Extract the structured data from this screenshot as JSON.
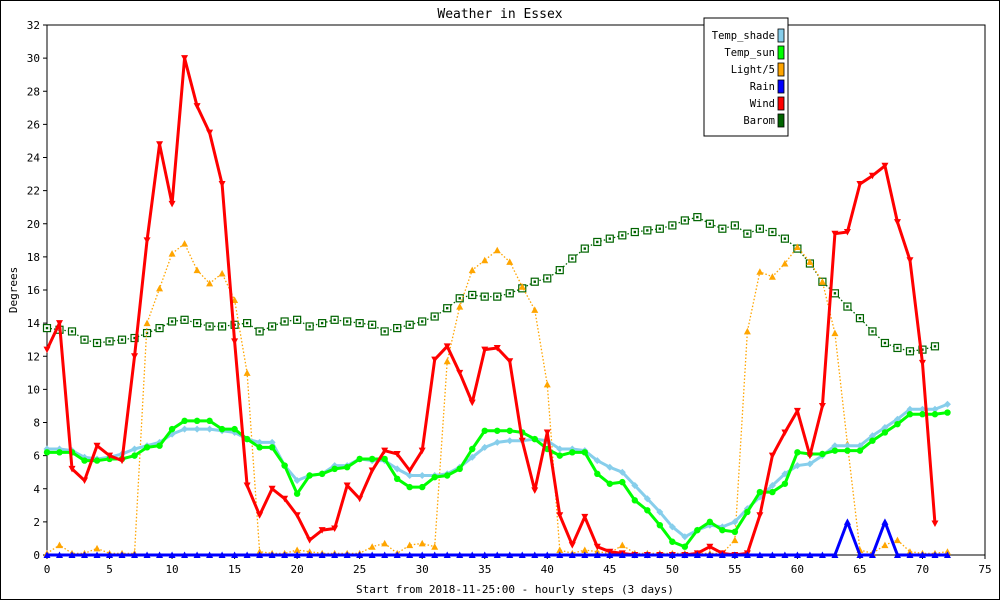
{
  "chart_data": {
    "type": "line",
    "title": "Weather in Essex",
    "xlabel": "Start from 2018-11-25:00 - hourly steps (3 days)",
    "ylabel": "Degrees",
    "xlim": [
      0,
      75
    ],
    "ylim": [
      0,
      32
    ],
    "x_ticks": [
      0,
      5,
      10,
      15,
      20,
      25,
      30,
      35,
      40,
      45,
      50,
      55,
      60,
      65,
      70,
      75
    ],
    "y_ticks": [
      0,
      2,
      4,
      6,
      8,
      10,
      12,
      14,
      16,
      18,
      20,
      22,
      24,
      26,
      28,
      30,
      32
    ],
    "grid": false,
    "legend_position": "top-right",
    "series": [
      {
        "name": "Temp_shade",
        "color": "#87ceeb",
        "marker": "diamond",
        "style": "solid",
        "values": [
          6.4,
          6.4,
          6.3,
          5.9,
          5.8,
          5.9,
          6.1,
          6.4,
          6.6,
          6.8,
          7.3,
          7.6,
          7.6,
          7.6,
          7.5,
          7.4,
          7.0,
          6.8,
          6.8,
          5.4,
          4.5,
          4.8,
          4.9,
          5.4,
          5.4,
          5.8,
          5.7,
          5.7,
          5.2,
          4.8,
          4.8,
          4.8,
          4.9,
          5.3,
          5.9,
          6.5,
          6.8,
          6.9,
          6.9,
          7.0,
          6.9,
          6.4,
          6.4,
          6.3,
          5.7,
          5.3,
          5.0,
          4.2,
          3.4,
          2.6,
          1.7,
          1.1,
          1.5,
          1.8,
          1.7,
          2.0,
          2.8,
          3.5,
          4.2,
          4.9,
          5.4,
          5.5,
          6.0,
          6.6,
          6.6,
          6.6,
          7.2,
          7.7,
          8.2,
          8.8,
          8.8,
          8.8,
          9.1
        ]
      },
      {
        "name": "Temp_sun",
        "color": "#00ff00",
        "marker": "circle",
        "style": "solid",
        "values": [
          6.2,
          6.2,
          6.2,
          5.7,
          5.7,
          5.8,
          5.8,
          6.0,
          6.5,
          6.6,
          7.6,
          8.1,
          8.1,
          8.1,
          7.6,
          7.6,
          7.0,
          6.5,
          6.5,
          5.4,
          3.7,
          4.8,
          4.9,
          5.2,
          5.3,
          5.8,
          5.8,
          5.8,
          4.6,
          4.1,
          4.1,
          4.7,
          4.8,
          5.2,
          6.4,
          7.5,
          7.5,
          7.5,
          7.4,
          7.0,
          6.4,
          6.0,
          6.2,
          6.2,
          4.9,
          4.3,
          4.4,
          3.3,
          2.7,
          1.8,
          0.8,
          0.5,
          1.5,
          2.0,
          1.5,
          1.4,
          2.6,
          3.8,
          3.8,
          4.3,
          6.2,
          6.1,
          6.1,
          6.3,
          6.3,
          6.3,
          6.9,
          7.4,
          7.9,
          8.5,
          8.5,
          8.5,
          8.6
        ]
      },
      {
        "name": "Light/5",
        "color": "#ffa500",
        "marker": "triangle-up",
        "style": "dotted",
        "values": [
          0.1,
          0.6,
          0.1,
          0.1,
          0.4,
          0.1,
          0.1,
          0.1,
          14.0,
          16.1,
          18.2,
          18.8,
          17.2,
          16.4,
          17.0,
          15.4,
          11.0,
          0.2,
          0.1,
          0.1,
          0.3,
          0.2,
          0.1,
          0.1,
          0.1,
          0.1,
          0.5,
          0.7,
          0.1,
          0.6,
          0.7,
          0.5,
          11.7,
          15.0,
          17.2,
          17.8,
          18.4,
          17.7,
          16.2,
          14.8,
          10.3,
          0.3,
          0.1,
          0.3,
          0.2,
          0.1,
          0.6,
          0.1,
          0.1,
          0.1,
          0.1,
          0.1,
          0.1,
          0.1,
          0.1,
          0.9,
          13.5,
          17.1,
          16.8,
          17.6,
          18.6,
          17.7,
          16.5,
          13.4,
          6.7,
          0.3,
          0.1,
          0.6,
          0.9,
          0.2,
          0.1,
          0.1,
          0.2
        ]
      },
      {
        "name": "Rain",
        "color": "#0000ff",
        "marker": "triangle-up",
        "style": "solid",
        "values": [
          0,
          0,
          0,
          0,
          0,
          0,
          0,
          0,
          0,
          0,
          0,
          0,
          0,
          0,
          0,
          0,
          0,
          0,
          0,
          0,
          0,
          0,
          0,
          0,
          0,
          0,
          0,
          0,
          0,
          0,
          0,
          0,
          0,
          0,
          0,
          0,
          0,
          0,
          0,
          0,
          0,
          0,
          0,
          0,
          0,
          0,
          0,
          0,
          0,
          0,
          0,
          0,
          0,
          0,
          0,
          0,
          0,
          0,
          0,
          0,
          0,
          0,
          0,
          0,
          2.0,
          0,
          0,
          2.0,
          0,
          0,
          0,
          0,
          0
        ]
      },
      {
        "name": "Wind",
        "color": "#ff0000",
        "marker": "triangle-down",
        "style": "solid",
        "values": [
          12.4,
          14.0,
          5.2,
          4.5,
          6.6,
          6.0,
          5.7,
          12.0,
          19.0,
          24.8,
          21.2,
          30.0,
          27.1,
          25.5,
          22.4,
          12.9,
          4.2,
          2.4,
          4.0,
          3.4,
          2.4,
          0.9,
          1.5,
          1.6,
          4.2,
          3.4,
          5.1,
          6.3,
          6.1,
          5.1,
          6.3,
          11.8,
          12.6,
          11.0,
          9.2,
          12.4,
          12.5,
          11.7,
          6.9,
          3.9,
          7.4,
          2.4,
          0.6,
          2.3,
          0.5,
          0.2,
          0.1,
          0.0,
          0.0,
          0.0,
          0.0,
          0.0,
          0.1,
          0.5,
          0.1,
          0.0,
          0.1,
          2.4,
          6.0,
          7.4,
          8.7,
          6.0,
          9.0,
          19.4,
          19.5,
          22.4,
          22.9,
          23.5,
          20.1,
          17.8,
          11.6,
          1.9
        ]
      },
      {
        "name": "Barom",
        "color": "#006400",
        "marker": "square",
        "style": "dotted",
        "values": [
          13.7,
          13.6,
          13.5,
          13.0,
          12.8,
          12.9,
          13.0,
          13.1,
          13.4,
          13.7,
          14.1,
          14.2,
          14.0,
          13.8,
          13.8,
          13.9,
          14.0,
          13.5,
          13.8,
          14.1,
          14.2,
          13.8,
          14.0,
          14.2,
          14.1,
          14.0,
          13.9,
          13.5,
          13.7,
          13.9,
          14.1,
          14.4,
          14.9,
          15.5,
          15.7,
          15.6,
          15.6,
          15.8,
          16.1,
          16.5,
          16.7,
          17.2,
          17.9,
          18.5,
          18.9,
          19.1,
          19.3,
          19.5,
          19.6,
          19.7,
          19.9,
          20.2,
          20.4,
          20.0,
          19.7,
          19.9,
          19.4,
          19.7,
          19.5,
          19.1,
          18.5,
          17.6,
          16.5,
          15.8,
          15.0,
          14.3,
          13.5,
          12.8,
          12.5,
          12.3,
          12.4,
          12.6
        ]
      }
    ]
  }
}
